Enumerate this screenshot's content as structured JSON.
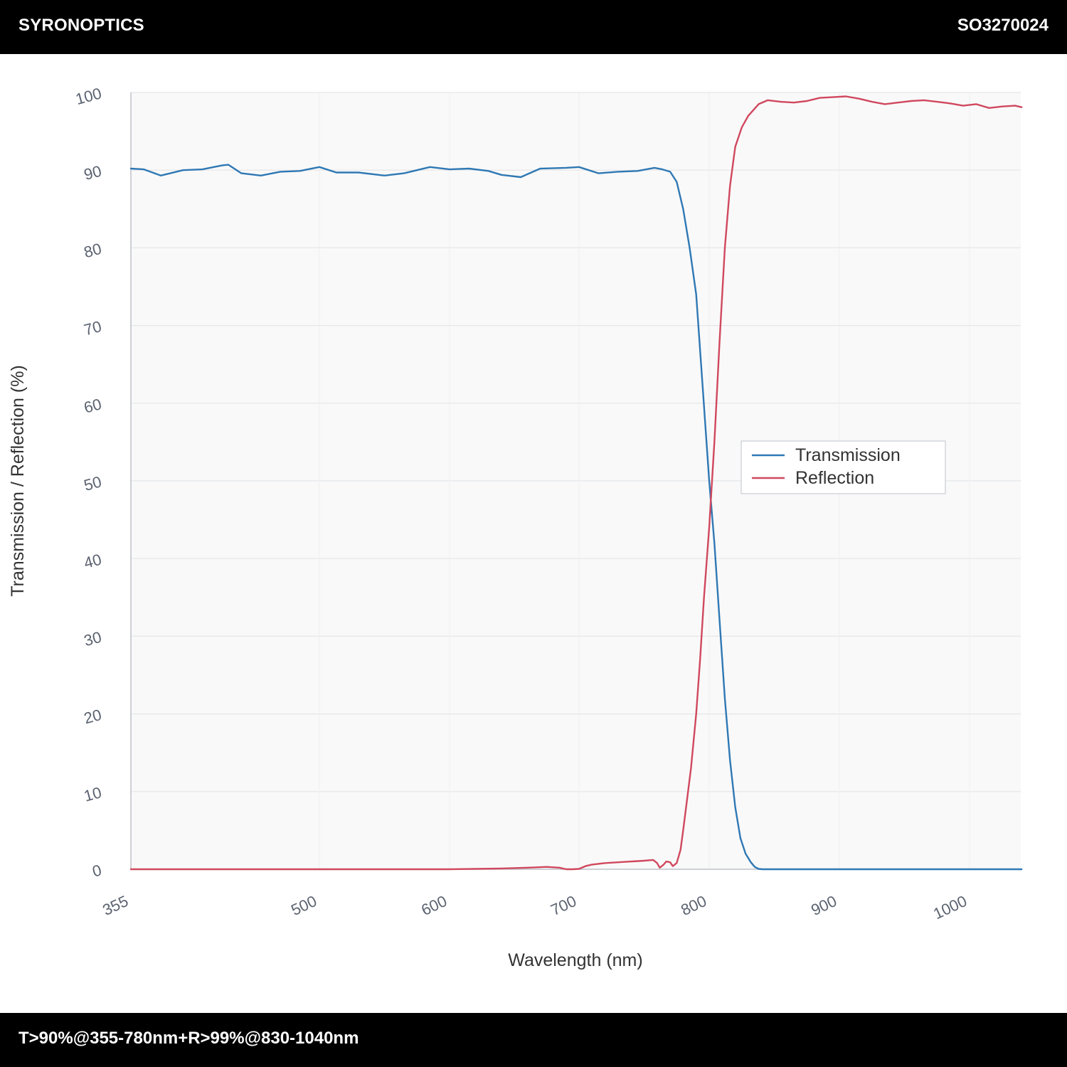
{
  "header": {
    "brand": "SYRONOPTICS",
    "code": "SO3270024"
  },
  "footer": {
    "spec": "T>90%@355-780nm+R>99%@830-1040nm"
  },
  "chart_data": {
    "type": "line",
    "xlabel": "Wavelength (nm)",
    "ylabel": "Transmission / Reflection (%)",
    "xlim": [
      355,
      1040
    ],
    "ylim": [
      0,
      100
    ],
    "xticks": [
      355,
      500,
      600,
      700,
      800,
      900,
      1000
    ],
    "yticks": [
      0,
      10,
      20,
      30,
      40,
      50,
      60,
      70,
      80,
      90,
      100
    ],
    "grid": true,
    "legend_position": "right-middle",
    "series": [
      {
        "name": "Transmission",
        "color": "#2f78b4",
        "x": [
          355,
          365,
          378,
          395,
          410,
          425,
          430,
          440,
          455,
          470,
          485,
          500,
          513,
          530,
          550,
          565,
          585,
          600,
          615,
          630,
          640,
          655,
          670,
          690,
          700,
          715,
          730,
          745,
          758,
          764,
          770,
          775,
          780,
          785,
          790,
          795,
          800,
          804,
          808,
          812,
          816,
          820,
          824,
          828,
          832,
          835,
          838,
          841,
          850,
          900,
          950,
          1000,
          1040
        ],
        "values": [
          90.2,
          90.1,
          89.3,
          90.0,
          90.1,
          90.6,
          90.7,
          89.6,
          89.3,
          89.8,
          89.9,
          90.4,
          89.7,
          89.7,
          89.3,
          89.6,
          90.4,
          90.1,
          90.2,
          89.9,
          89.4,
          89.1,
          90.2,
          90.3,
          90.4,
          89.6,
          89.8,
          89.9,
          90.3,
          90.1,
          89.8,
          88.5,
          85.0,
          80.0,
          74.0,
          62.0,
          50.0,
          42.0,
          32.0,
          22.0,
          14.0,
          8.0,
          4.0,
          2.0,
          0.9,
          0.3,
          0.05,
          0.0,
          0.0,
          0.0,
          0.0,
          0.0,
          0.0
        ]
      },
      {
        "name": "Reflection",
        "color": "#d0485e",
        "x": [
          355,
          400,
          500,
          600,
          620,
          640,
          660,
          675,
          685,
          690,
          695,
          700,
          705,
          710,
          720,
          730,
          740,
          750,
          757,
          760,
          762,
          765,
          767,
          770,
          772,
          775,
          778,
          780,
          783,
          786,
          790,
          793,
          796,
          800,
          804,
          808,
          812,
          816,
          820,
          825,
          830,
          838,
          845,
          855,
          865,
          875,
          885,
          895,
          905,
          915,
          925,
          935,
          945,
          955,
          965,
          975,
          985,
          995,
          1005,
          1015,
          1025,
          1035,
          1040
        ],
        "values": [
          0.0,
          0.0,
          0.0,
          0.0,
          0.05,
          0.1,
          0.2,
          0.3,
          0.2,
          0.0,
          0.0,
          0.05,
          0.4,
          0.6,
          0.8,
          0.9,
          1.0,
          1.1,
          1.2,
          0.8,
          0.2,
          0.6,
          1.0,
          0.9,
          0.4,
          0.8,
          2.5,
          5.0,
          9.0,
          13.0,
          20.0,
          27.0,
          35.0,
          44.0,
          55.0,
          68.0,
          80.0,
          88.0,
          93.0,
          95.5,
          97.0,
          98.5,
          99.0,
          98.8,
          98.7,
          98.9,
          99.3,
          99.4,
          99.5,
          99.2,
          98.8,
          98.5,
          98.7,
          98.9,
          99.0,
          98.8,
          98.6,
          98.3,
          98.5,
          98.0,
          98.2,
          98.3,
          98.1
        ]
      }
    ]
  }
}
